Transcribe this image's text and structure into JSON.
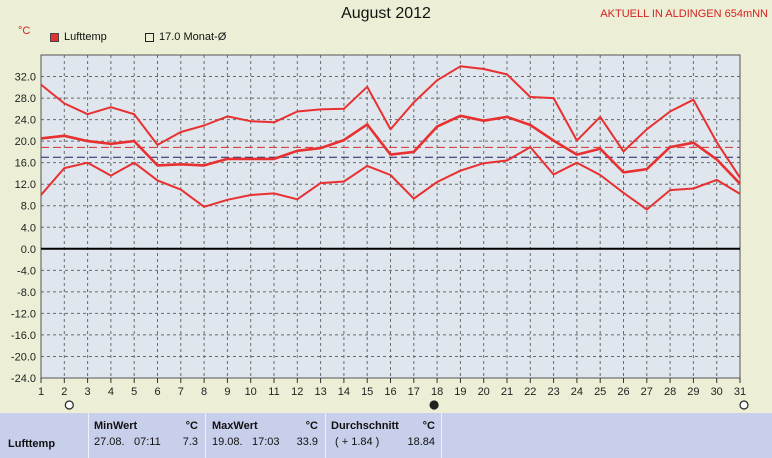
{
  "title": "August 2012",
  "station": "AKTUELL IN ALDINGEN 654mNN",
  "unit": "°C",
  "legend": [
    {
      "label": "Lufttemp",
      "color": "#e83030"
    },
    {
      "label": "17.0 Monat-Ø",
      "color": "#2a2a66"
    }
  ],
  "chart_data": {
    "type": "line",
    "title": "August 2012",
    "ylabel": "°C",
    "ylim": [
      -24,
      36
    ],
    "yticks": [
      "32.0",
      "28.0",
      "24.0",
      "20.0",
      "16.0",
      "12.0",
      "8.0",
      "4.0",
      "0.0",
      "-4.0",
      "-8.0",
      "-12.0",
      "-16.0",
      "-20.0",
      "-24.0"
    ],
    "x": [
      1,
      2,
      3,
      4,
      5,
      6,
      7,
      8,
      9,
      10,
      11,
      12,
      13,
      14,
      15,
      16,
      17,
      18,
      19,
      20,
      21,
      22,
      23,
      24,
      25,
      26,
      27,
      28,
      29,
      30,
      31
    ],
    "series": [
      {
        "name": "max",
        "values": [
          30.5,
          27.0,
          25.0,
          26.3,
          25.0,
          19.3,
          21.7,
          22.9,
          24.6,
          23.7,
          23.5,
          25.5,
          25.9,
          26.0,
          30.1,
          22.2,
          27.2,
          31.3,
          33.9,
          33.4,
          32.4,
          28.2,
          28.0,
          20.1,
          24.5,
          18.1,
          22.2,
          25.5,
          27.7,
          19.8,
          13.2
        ]
      },
      {
        "name": "mean",
        "values": [
          20.5,
          21.0,
          20.0,
          19.5,
          20.0,
          15.5,
          15.7,
          15.5,
          16.7,
          16.7,
          16.7,
          18.2,
          18.7,
          20.2,
          23.1,
          17.5,
          18.0,
          22.7,
          24.7,
          23.8,
          24.5,
          23.0,
          20.1,
          17.5,
          18.6,
          14.2,
          14.8,
          18.9,
          19.7,
          16.6,
          12.1
        ]
      },
      {
        "name": "min",
        "values": [
          10.0,
          15.0,
          16.0,
          13.6,
          16.0,
          12.7,
          11.0,
          7.8,
          9.1,
          10.0,
          10.3,
          9.2,
          12.2,
          12.5,
          15.4,
          13.7,
          9.3,
          12.4,
          14.5,
          15.9,
          16.4,
          18.9,
          13.8,
          16.0,
          13.7,
          10.4,
          7.3,
          10.9,
          11.2,
          12.8,
          10.2
        ]
      }
    ],
    "reference_lines": [
      {
        "label": "17.0 Monat-Ø",
        "value": 17.0
      },
      {
        "value": 18.84
      }
    ],
    "grid": true
  },
  "stats": {
    "row_label": "Lufttemp",
    "min": {
      "header": "MinWert",
      "unit": "°C",
      "date": "27.08.",
      "time": "07:11",
      "value": "7.3"
    },
    "max": {
      "header": "MaxWert",
      "unit": "°C",
      "date": "19.08.",
      "time": "17:03",
      "value": "33.9"
    },
    "avg": {
      "header": "Durchschnitt",
      "unit": "°C",
      "diff": "( + 1.84 )",
      "value": "18.84"
    }
  }
}
